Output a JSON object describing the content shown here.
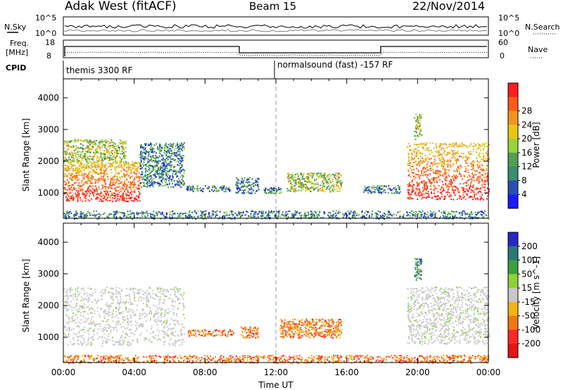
{
  "header": {
    "station": "Adak West (fitACF)",
    "beam": "Beam 15",
    "date": "22/Nov/2014"
  },
  "top_strips": {
    "nsky_label": "N.Sky",
    "nsearch_label": "N.Search",
    "nsky_ticks": [
      "10^5",
      "10^0"
    ],
    "nsearch_ticks": [
      "10^5",
      "10^0"
    ],
    "freq_label": "Freq.",
    "freq_unit": "[MHz]",
    "freq_ticks": [
      "18",
      "8"
    ],
    "nave_label": "Nave",
    "nave_ticks": [
      "60",
      "0"
    ],
    "cpid_label": "CPID",
    "cpid_left": "themis 3300 RF",
    "cpid_right": "normalsound (fast) -157 RF"
  },
  "chart_data": [
    {
      "type": "heatmap",
      "name": "power-panel",
      "ylabel": "Slant Range [km]",
      "yticks": [
        "1000",
        "2000",
        "3000",
        "4000"
      ],
      "ylim": [
        200,
        4600
      ],
      "xticks": [
        "00:00",
        "04:00",
        "08:00",
        "12:00",
        "16:00",
        "20:00",
        "00:00"
      ],
      "xlim_hours": [
        0,
        24
      ],
      "colorbar": {
        "label": "Power [dB]",
        "ticks": [
          "4",
          "8",
          "12",
          "16",
          "20",
          "24",
          "28"
        ],
        "colors": [
          "#1a1aff",
          "#2850b4",
          "#3c8c6e",
          "#50a050",
          "#9ad23c",
          "#e6c814",
          "#f0961e",
          "#ff5a1e",
          "#ff1e1e"
        ]
      },
      "echo_regions": [
        {
          "t": [
            0.0,
            4.3
          ],
          "range_km": [
            750,
            2000
          ],
          "level": "high"
        },
        {
          "t": [
            0.0,
            3.5
          ],
          "range_km": [
            2000,
            2700
          ],
          "level": "medium"
        },
        {
          "t": [
            4.3,
            6.8
          ],
          "range_km": [
            1200,
            2600
          ],
          "level": "low"
        },
        {
          "t": [
            6.9,
            9.4
          ],
          "range_km": [
            1050,
            1250
          ],
          "level": "low"
        },
        {
          "t": [
            9.7,
            11.0
          ],
          "range_km": [
            1000,
            1500
          ],
          "level": "low"
        },
        {
          "t": [
            11.3,
            12.3
          ],
          "range_km": [
            1000,
            1200
          ],
          "level": "low"
        },
        {
          "t": [
            12.6,
            15.7
          ],
          "range_km": [
            1050,
            1650
          ],
          "level": "medium"
        },
        {
          "t": [
            16.9,
            19.0
          ],
          "range_km": [
            1000,
            1250
          ],
          "level": "low"
        },
        {
          "t": [
            19.4,
            24.0
          ],
          "range_km": [
            800,
            2600
          ],
          "level": "high"
        },
        {
          "t": [
            19.8,
            20.2
          ],
          "range_km": [
            2700,
            3500
          ],
          "level": "medium"
        },
        {
          "t": [
            0.0,
            24.0
          ],
          "range_km": [
            200,
            450
          ],
          "level": "low"
        }
      ]
    },
    {
      "type": "heatmap",
      "name": "velocity-panel",
      "ylabel": "Slant Range [km]",
      "yticks": [
        "1000",
        "2000",
        "3000",
        "4000"
      ],
      "ylim": [
        200,
        4600
      ],
      "xticks": [
        "00:00",
        "04:00",
        "08:00",
        "12:00",
        "16:00",
        "20:00",
        "00:00"
      ],
      "xlabel": "Time UT",
      "xlim_hours": [
        0,
        24
      ],
      "colorbar": {
        "label": "Velocity [m s^-1]",
        "ticks": [
          "200",
          "100",
          "50",
          "15",
          "-15",
          "-50",
          "-100",
          "-200"
        ],
        "colors": [
          "#2828c8",
          "#287878",
          "#3ca03c",
          "#8cd23c",
          "#c8c8c8",
          "#f0b414",
          "#f07814",
          "#ff2828",
          "#e61414"
        ]
      },
      "echo_regions": [
        {
          "t": [
            0.0,
            6.8
          ],
          "range_km": [
            750,
            2600
          ],
          "level": "ground"
        },
        {
          "t": [
            7.0,
            9.6
          ],
          "range_km": [
            1050,
            1250
          ],
          "level": "negative"
        },
        {
          "t": [
            10.0,
            11.0
          ],
          "range_km": [
            1000,
            1350
          ],
          "level": "negative"
        },
        {
          "t": [
            12.2,
            15.7
          ],
          "range_km": [
            1000,
            1600
          ],
          "level": "negative"
        },
        {
          "t": [
            19.4,
            24.0
          ],
          "range_km": [
            800,
            2600
          ],
          "level": "ground"
        },
        {
          "t": [
            19.8,
            20.2
          ],
          "range_km": [
            2800,
            3500
          ],
          "level": "positive"
        },
        {
          "t": [
            0.0,
            24.0
          ],
          "range_km": [
            200,
            450
          ],
          "level": "negative"
        }
      ]
    }
  ]
}
